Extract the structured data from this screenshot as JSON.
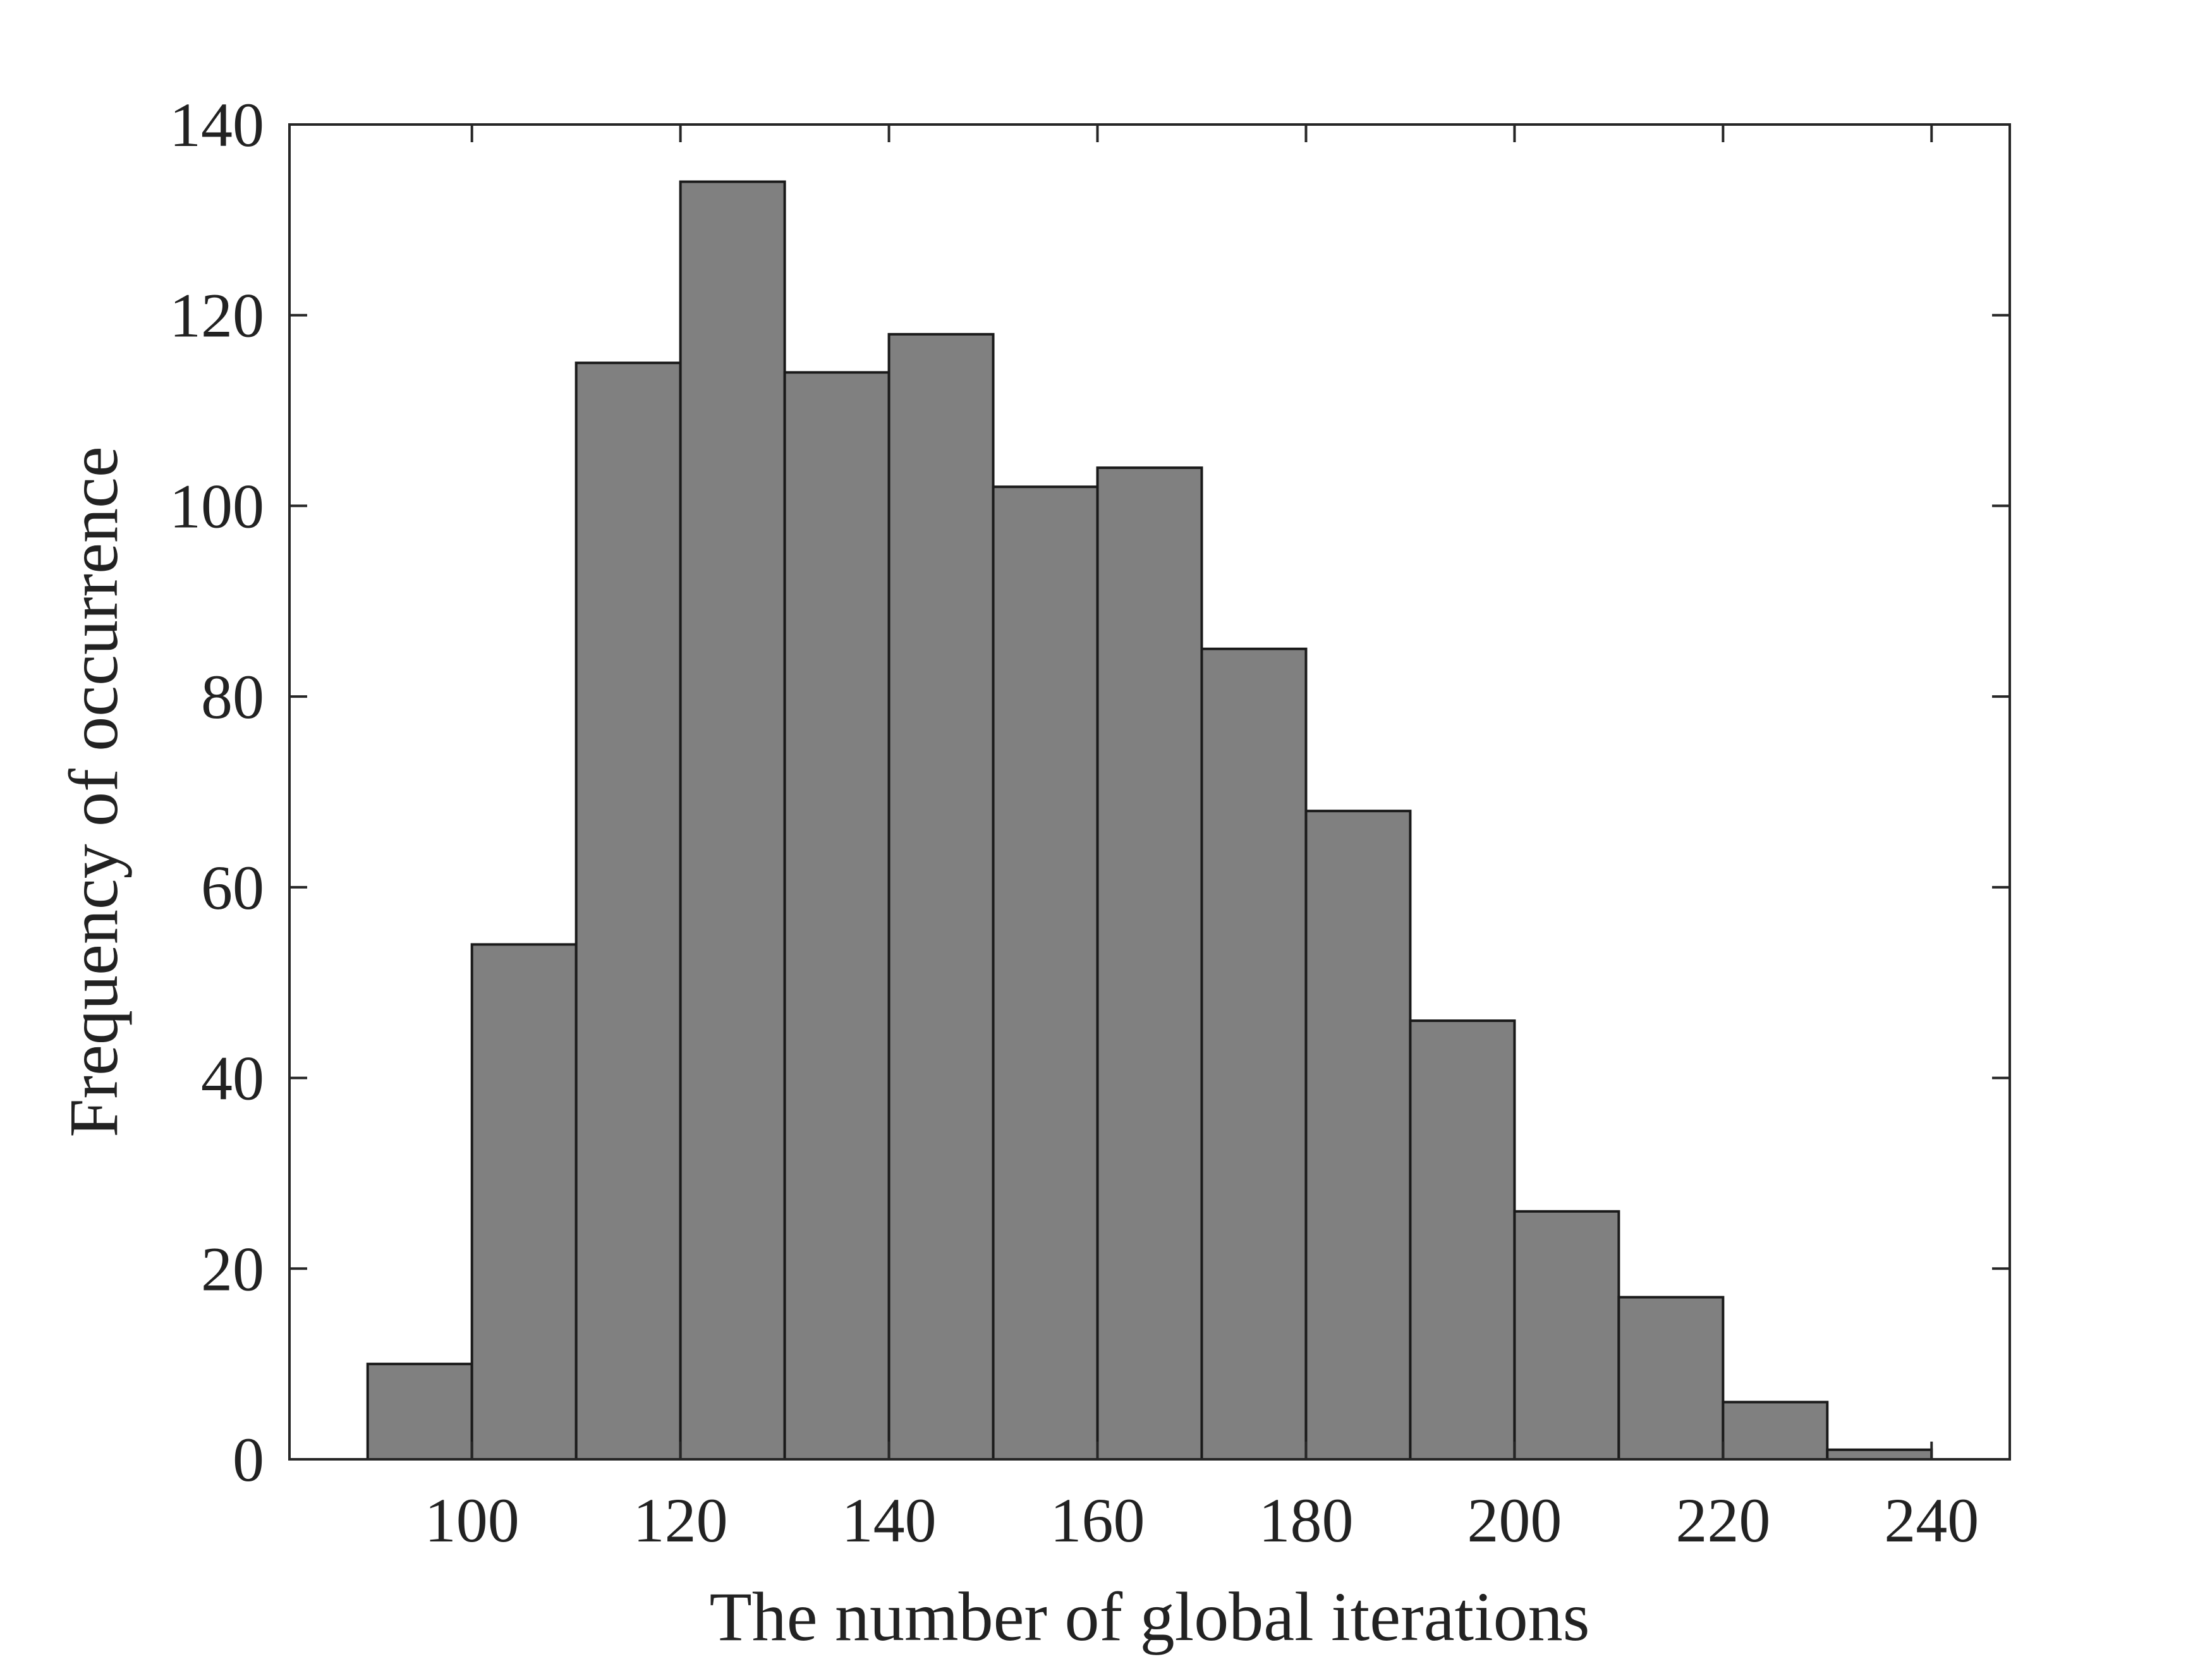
{
  "chart_data": {
    "type": "bar",
    "title": "",
    "xlabel": "The number of global iterations",
    "ylabel": "Frequency of occurrence",
    "bins": [
      {
        "start": 90,
        "end": 100,
        "count": 10
      },
      {
        "start": 100,
        "end": 110,
        "count": 54
      },
      {
        "start": 110,
        "end": 120,
        "count": 115
      },
      {
        "start": 120,
        "end": 130,
        "count": 134
      },
      {
        "start": 130,
        "end": 140,
        "count": 114
      },
      {
        "start": 140,
        "end": 150,
        "count": 118
      },
      {
        "start": 150,
        "end": 160,
        "count": 102
      },
      {
        "start": 160,
        "end": 170,
        "count": 104
      },
      {
        "start": 170,
        "end": 180,
        "count": 85
      },
      {
        "start": 180,
        "end": 190,
        "count": 68
      },
      {
        "start": 190,
        "end": 200,
        "count": 46
      },
      {
        "start": 200,
        "end": 210,
        "count": 26
      },
      {
        "start": 210,
        "end": 220,
        "count": 17
      },
      {
        "start": 220,
        "end": 230,
        "count": 6
      },
      {
        "start": 230,
        "end": 240,
        "count": 1
      }
    ],
    "xlim": [
      82.5,
      247.5
    ],
    "ylim": [
      0,
      140
    ],
    "xticks": [
      100,
      120,
      140,
      160,
      180,
      200,
      220,
      240
    ],
    "yticks": [
      0,
      20,
      40,
      60,
      80,
      100,
      120,
      140
    ],
    "grid": false,
    "bar_color": "#808080",
    "edge_color": "#1a1a1a",
    "axis_color": "#262626"
  }
}
